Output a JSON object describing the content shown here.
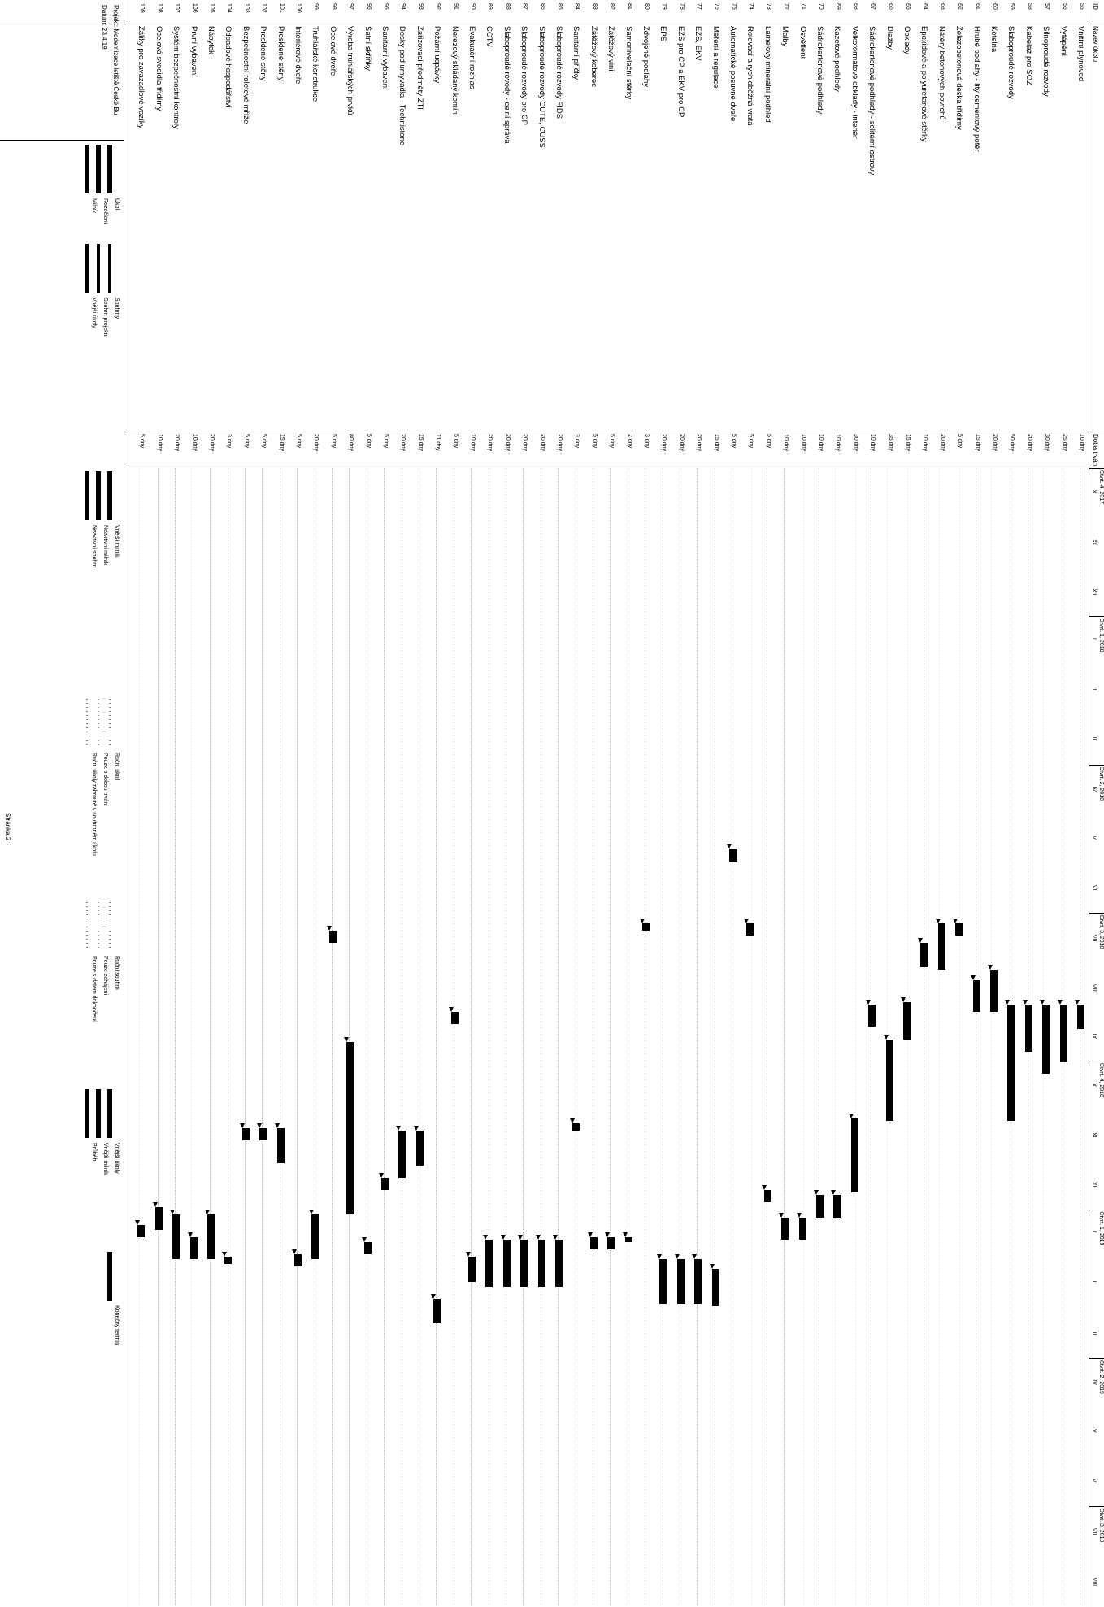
{
  "header": {
    "id": "ID",
    "name": "Název úkolu",
    "duration": "Doba trvání",
    "periods": [
      {
        "quarter": "Čtvrt. 4, 2017",
        "months": [
          "X",
          "XI",
          "XII"
        ]
      },
      {
        "quarter": "Čtvrt. 1, 2018",
        "months": [
          "I",
          "II",
          "III"
        ]
      },
      {
        "quarter": "Čtvrt. 2, 2018",
        "months": [
          "IV",
          "V",
          "VI"
        ]
      },
      {
        "quarter": "Čtvrt. 3, 2018",
        "months": [
          "VII",
          "VIII",
          "IX"
        ]
      },
      {
        "quarter": "Čtvrt. 4, 2018",
        "months": [
          "X",
          "XI",
          "XII"
        ]
      },
      {
        "quarter": "Čtvrt. 1, 2019",
        "months": [
          "I",
          "II",
          "III"
        ]
      },
      {
        "quarter": "Čtvrt. 2, 2019",
        "months": [
          "IV",
          "V",
          "VI"
        ]
      },
      {
        "quarter": "Čtvrt. 3, 2019",
        "months": [
          "VII",
          "VIII"
        ]
      }
    ]
  },
  "tasks": [
    {
      "id": "55",
      "name": "Vnitřní plynovod",
      "duration": "10 dny",
      "start": 11.85,
      "end": 12.35
    },
    {
      "id": "56",
      "name": "Vytápění",
      "duration": "25 dny",
      "start": 11.85,
      "end": 13.0
    },
    {
      "id": "57",
      "name": "Silnoproudé rozvody",
      "duration": "30 dny",
      "start": 11.85,
      "end": 13.25
    },
    {
      "id": "58",
      "name": "Kabeláž pro SOZ",
      "duration": "20 dny",
      "start": 11.85,
      "end": 12.8
    },
    {
      "id": "59",
      "name": "Slaboproudé rozvody",
      "duration": "50 dny",
      "start": 11.85,
      "end": 14.2
    },
    {
      "id": "60",
      "name": "Kotelna",
      "duration": "20 dny",
      "start": 11.15,
      "end": 12.0
    },
    {
      "id": "61",
      "name": "Hrubé podlahy - litý cementový potěr",
      "duration": "15 dny",
      "start": 11.35,
      "end": 12.0
    },
    {
      "id": "62",
      "name": "Železobetonová deska třídírny",
      "duration": "5 dny",
      "start": 10.2,
      "end": 10.45
    },
    {
      "id": "63",
      "name": "Nátěry betonových povrchů",
      "duration": "20 dny",
      "start": 10.2,
      "end": 11.15
    },
    {
      "id": "64",
      "name": "Epoxidové a polyuretanové stěrky",
      "duration": "10 dny",
      "start": 10.6,
      "end": 11.1
    },
    {
      "id": "65",
      "name": "Obklady",
      "duration": "15 dny",
      "start": 11.8,
      "end": 12.55
    },
    {
      "id": "66",
      "name": "Dlažby",
      "duration": "35 dny",
      "start": 12.55,
      "end": 14.2
    },
    {
      "id": "67",
      "name": "Sádrokartonové podhledy - solitérní ostrovy",
      "duration": "10 dny",
      "start": 11.85,
      "end": 12.3
    },
    {
      "id": "68",
      "name": "Velkoformátové obklady - interiér",
      "duration": "30 dny",
      "start": 14.15,
      "end": 15.65
    },
    {
      "id": "69",
      "name": "Kazetové podhledy",
      "duration": "10 dny",
      "start": 15.7,
      "end": 16.15
    },
    {
      "id": "70",
      "name": "Sádrokartonové podhledy",
      "duration": "10 dny",
      "start": 15.7,
      "end": 16.15
    },
    {
      "id": "71",
      "name": "Osvětlení",
      "duration": "10 dny",
      "start": 16.15,
      "end": 16.6
    },
    {
      "id": "72",
      "name": "Malby",
      "duration": "10 dny",
      "start": 16.15,
      "end": 16.6
    },
    {
      "id": "73",
      "name": "Lamelový minerální podhled",
      "duration": "5 dny",
      "start": 15.6,
      "end": 15.85
    },
    {
      "id": "74",
      "name": "Rolovací a rychloběžná vrata",
      "duration": "5 dny",
      "start": 10.2,
      "end": 10.45
    },
    {
      "id": "75",
      "name": "Automatické posuvné dveře",
      "duration": "5 dny",
      "start": 8.7,
      "end": 8.95
    },
    {
      "id": "76",
      "name": "Měření a regulace",
      "duration": "15 dny",
      "start": 17.2,
      "end": 17.95
    },
    {
      "id": "77",
      "name": "EZS, EKV",
      "duration": "20 dny",
      "start": 17.0,
      "end": 17.9
    },
    {
      "id": "78",
      "name": "EZS pro CP a EKV pro CP",
      "duration": "20 dny",
      "start": 17.0,
      "end": 17.9
    },
    {
      "id": "79",
      "name": "EPS",
      "duration": "20 dny",
      "start": 17.0,
      "end": 17.9
    },
    {
      "id": "80",
      "name": "Zdvojené podlahy",
      "duration": "3 dny",
      "start": 10.2,
      "end": 10.35
    },
    {
      "id": "81",
      "name": "Samonivelační stěrky",
      "duration": "2 dny",
      "start": 16.55,
      "end": 16.65
    },
    {
      "id": "82",
      "name": "Zátěžový vinil",
      "duration": "5 dny",
      "start": 16.55,
      "end": 16.8
    },
    {
      "id": "83",
      "name": "Zátěžový koberec",
      "duration": "5 dny",
      "start": 16.55,
      "end": 16.8
    },
    {
      "id": "84",
      "name": "Sanitární příčky",
      "duration": "3 dny",
      "start": 14.25,
      "end": 14.4
    },
    {
      "id": "85",
      "name": "Slaboproudé rozvody FIDS",
      "duration": "20 dny",
      "start": 16.6,
      "end": 17.55
    },
    {
      "id": "86",
      "name": "Slaboproudé rozvody CUTE, CUSS",
      "duration": "20 dny",
      "start": 16.6,
      "end": 17.55
    },
    {
      "id": "87",
      "name": "Slaboproudé rozvody pro CP",
      "duration": "20 dny",
      "start": 16.6,
      "end": 17.55
    },
    {
      "id": "88",
      "name": "Slaboproudé rovody - celní správa",
      "duration": "20 dny",
      "start": 16.6,
      "end": 17.55
    },
    {
      "id": "89",
      "name": "CCTV",
      "duration": "20 dny",
      "start": 16.6,
      "end": 17.55
    },
    {
      "id": "90",
      "name": "Evakuační rozhlas",
      "duration": "10 dny",
      "start": 16.95,
      "end": 17.45
    },
    {
      "id": "91",
      "name": "Nerezový skládaný komín",
      "duration": "5 dny",
      "start": 12.0,
      "end": 12.25
    },
    {
      "id": "92",
      "name": "Požární ucpávky",
      "duration": "11 dny",
      "start": 17.8,
      "end": 18.3
    },
    {
      "id": "93",
      "name": "Zařizovací předměty ZTI",
      "duration": "15 dny",
      "start": 14.4,
      "end": 15.1
    },
    {
      "id": "94",
      "name": "Desky pod umyvadla - Technistone",
      "duration": "20 dny",
      "start": 14.4,
      "end": 15.35
    },
    {
      "id": "95",
      "name": "Sanitární vybavení",
      "duration": "5 dny",
      "start": 15.35,
      "end": 15.6
    },
    {
      "id": "96",
      "name": "Šatní skříňky",
      "duration": "5 dny",
      "start": 16.65,
      "end": 16.9
    },
    {
      "id": "97",
      "name": "Výroba truhlářských prvků",
      "duration": "80 dny",
      "start": 12.6,
      "end": 16.1
    },
    {
      "id": "98",
      "name": "Ocelové dveře",
      "duration": "5 dny",
      "start": 10.35,
      "end": 10.6
    },
    {
      "id": "99",
      "name": "Truhlářské konstrukce",
      "duration": "20 dny",
      "start": 16.1,
      "end": 17.0
    },
    {
      "id": "100",
      "name": "Interiérové dveře",
      "duration": "5 dny",
      "start": 16.9,
      "end": 17.15
    },
    {
      "id": "101",
      "name": "Prosklené stěny",
      "duration": "15 dny",
      "start": 14.35,
      "end": 15.05
    },
    {
      "id": "102",
      "name": "Prosklené stěny",
      "duration": "5 dny",
      "start": 14.35,
      "end": 14.6
    },
    {
      "id": "103",
      "name": "Bezpečnostní roletové mříže",
      "duration": "5 dny",
      "start": 14.35,
      "end": 14.6
    },
    {
      "id": "104",
      "name": "Odpadové hospodářství",
      "duration": "3 dny",
      "start": 16.95,
      "end": 17.1
    },
    {
      "id": "105",
      "name": "Nábytek",
      "duration": "20 dny",
      "start": 16.1,
      "end": 17.0
    },
    {
      "id": "106",
      "name": "První vybavení",
      "duration": "10 dny",
      "start": 16.55,
      "end": 17.0
    },
    {
      "id": "107",
      "name": "Systém bezpečnostní kontroly",
      "duration": "20 dny",
      "start": 16.1,
      "end": 17.0
    },
    {
      "id": "108",
      "name": "Ocelová svodidla třídírny",
      "duration": "10 dny",
      "start": 15.95,
      "end": 16.4
    },
    {
      "id": "109",
      "name": "Záliky pro zavazadlové vozíky",
      "duration": "5 dny",
      "start": 16.3,
      "end": 16.55
    }
  ],
  "footer": {
    "project": "Projekt: Modernizace letiště České Bu",
    "date": "Datum: 23.4.19",
    "legend_col1": [
      "Úkol",
      "Rozdělení",
      "Milník"
    ],
    "legend_col2": [
      "Souhrny",
      "Souhrn projektu",
      "Vnější úkoly"
    ],
    "legend_col3": [
      "Vnější milník",
      "Neaktivní milník",
      "Neaktivní souhrn"
    ],
    "legend_col4": [
      "Ruční úkol",
      "Pouze s dobou trvání",
      "Ruční úkoly zahrnuté v souhrnném úkolu"
    ],
    "legend_col5": [
      "Ruční souhrn",
      "Pouze zahájení",
      "Pouze s datem dokončení"
    ],
    "legend_col6": [
      "Vnější úkoly",
      "Vnější milník",
      "Průběh"
    ],
    "legend_col7": [
      "Konečný termín"
    ],
    "page": "Stránka 2"
  }
}
